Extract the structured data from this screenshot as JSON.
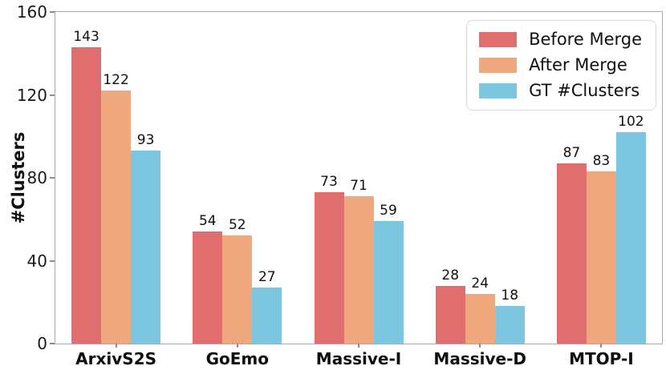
{
  "chart_data": {
    "type": "bar",
    "title": "",
    "xlabel": "",
    "ylabel": "#Clusters",
    "ylim": [
      0,
      160
    ],
    "yticks": [
      0,
      40,
      80,
      120,
      160
    ],
    "grid": false,
    "legend_position": "upper right",
    "categories": [
      "ArxivS2S",
      "GoEmo",
      "Massive-I",
      "Massive-D",
      "MTOP-I"
    ],
    "series": [
      {
        "name": "Before Merge",
        "color": "#e06e6e",
        "values": [
          143,
          54,
          73,
          28,
          87
        ]
      },
      {
        "name": "After Merge",
        "color": "#f0a97e",
        "values": [
          122,
          52,
          71,
          24,
          83
        ]
      },
      {
        "name": "GT #Clusters",
        "color": "#7dc6e0",
        "values": [
          93,
          27,
          59,
          18,
          102
        ]
      }
    ],
    "bar_value_labels_shown": true,
    "colors": {
      "spine": "#a8a8a8",
      "tick": "#8c8c8c",
      "text": "#111111",
      "legend_border": "#d8d8d8",
      "background": "#ffffff"
    }
  }
}
